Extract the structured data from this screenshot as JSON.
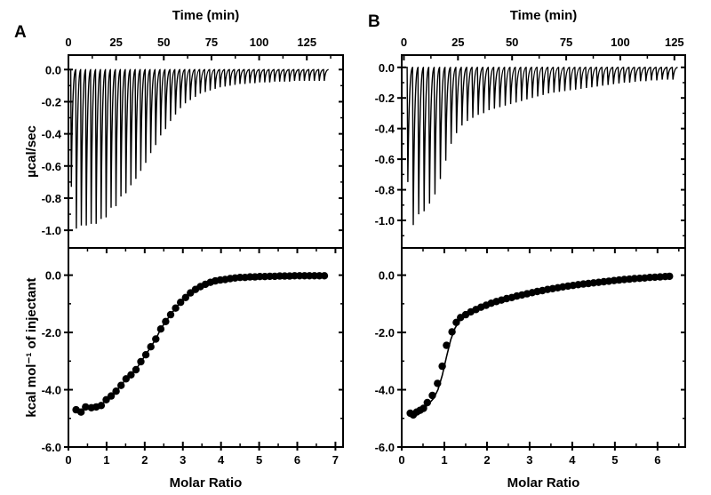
{
  "figure": {
    "panels": [
      "A",
      "B"
    ]
  },
  "chart_data": [
    {
      "panel": "A",
      "upper": {
        "type": "line",
        "title": "",
        "xlabel": "Time (min)",
        "ylabel": "µcal/sec",
        "xlim": [
          0,
          144
        ],
        "ylim": [
          -1.11,
          0.09
        ],
        "xticks": [
          0,
          25,
          50,
          75,
          100,
          125
        ],
        "xtick_labels": [
          "0",
          "25",
          "50",
          "75",
          "100",
          "125"
        ],
        "yticks": [
          0.0,
          -0.2,
          -0.4,
          -0.6,
          -0.8,
          -1.0
        ],
        "ytick_labels": [
          "0.0",
          "-0.2",
          "-0.4",
          "-0.6",
          "-0.8",
          "-1.0"
        ],
        "injection_interval_min": 2.6,
        "first_injection_min": 1.2,
        "peak_minima": [
          -0.73,
          -0.99,
          -0.97,
          -0.97,
          -0.96,
          -0.96,
          -0.93,
          -0.92,
          -0.86,
          -0.85,
          -0.79,
          -0.77,
          -0.72,
          -0.68,
          -0.63,
          -0.58,
          -0.52,
          -0.47,
          -0.41,
          -0.37,
          -0.32,
          -0.28,
          -0.24,
          -0.21,
          -0.19,
          -0.17,
          -0.15,
          -0.14,
          -0.13,
          -0.12,
          -0.11,
          -0.105,
          -0.1,
          -0.095,
          -0.09,
          -0.09,
          -0.085,
          -0.085,
          -0.08,
          -0.08,
          -0.08,
          -0.075,
          -0.075,
          -0.075,
          -0.075,
          -0.07,
          -0.07,
          -0.07,
          -0.07,
          -0.07,
          -0.07,
          -0.07
        ]
      },
      "lower": {
        "type": "scatter",
        "xlabel": "Molar Ratio",
        "ylabel": "kcal mol⁻¹ of injectant",
        "xlim": [
          0,
          7.2
        ],
        "ylim": [
          -6.0,
          0.95
        ],
        "xticks": [
          0,
          1,
          2,
          3,
          4,
          5,
          6,
          7
        ],
        "xtick_labels": [
          "0",
          "1",
          "2",
          "3",
          "4",
          "5",
          "6",
          "7"
        ],
        "yticks": [
          0.0,
          -2.0,
          -4.0,
          -6.0
        ],
        "ytick_labels": [
          "0.0",
          "-2.0",
          "-4.0",
          "-6.0"
        ],
        "points": {
          "x": [
            0.2,
            0.33,
            0.45,
            0.6,
            0.73,
            0.86,
            0.99,
            1.12,
            1.25,
            1.38,
            1.51,
            1.64,
            1.77,
            1.9,
            2.03,
            2.16,
            2.29,
            2.42,
            2.55,
            2.68,
            2.81,
            2.94,
            3.07,
            3.2,
            3.33,
            3.46,
            3.59,
            3.72,
            3.85,
            3.98,
            4.11,
            4.24,
            4.37,
            4.5,
            4.63,
            4.76,
            4.89,
            5.02,
            5.15,
            5.28,
            5.41,
            5.54,
            5.67,
            5.8,
            5.93,
            6.06,
            6.19,
            6.32,
            6.45,
            6.58,
            6.71
          ],
          "y": [
            -4.7,
            -4.78,
            -4.6,
            -4.63,
            -4.6,
            -4.55,
            -4.35,
            -4.22,
            -4.05,
            -3.85,
            -3.62,
            -3.48,
            -3.3,
            -3.02,
            -2.78,
            -2.5,
            -2.23,
            -1.88,
            -1.62,
            -1.38,
            -1.15,
            -0.95,
            -0.78,
            -0.62,
            -0.5,
            -0.4,
            -0.32,
            -0.25,
            -0.2,
            -0.17,
            -0.15,
            -0.12,
            -0.1,
            -0.08,
            -0.08,
            -0.06,
            -0.06,
            -0.05,
            -0.05,
            -0.04,
            -0.04,
            -0.03,
            -0.03,
            -0.03,
            -0.02,
            -0.02,
            -0.02,
            -0.02,
            -0.02,
            -0.02,
            -0.02
          ]
        },
        "fit": true
      }
    },
    {
      "panel": "B",
      "upper": {
        "type": "line",
        "title": "",
        "xlabel": "Time (min)",
        "ylabel": "",
        "xlim": [
          -1,
          130
        ],
        "ylim": [
          -1.18,
          0.08
        ],
        "xticks": [
          0,
          25,
          50,
          75,
          100,
          125
        ],
        "xtick_labels": [
          "0",
          "25",
          "50",
          "75",
          "100",
          "125"
        ],
        "yticks": [
          0.0,
          -0.2,
          -0.4,
          -0.6,
          -0.8,
          -1.0
        ],
        "ytick_labels": [
          "0.0",
          "-0.2",
          "-0.4",
          "-0.6",
          "-0.8",
          "-1.0"
        ],
        "injection_interval_min": 2.5,
        "first_injection_min": 1.5,
        "peak_minima": [
          -0.75,
          -1.03,
          -0.96,
          -0.94,
          -0.89,
          -0.83,
          -0.73,
          -0.61,
          -0.5,
          -0.43,
          -0.38,
          -0.35,
          -0.33,
          -0.31,
          -0.3,
          -0.28,
          -0.27,
          -0.26,
          -0.25,
          -0.24,
          -0.23,
          -0.22,
          -0.21,
          -0.2,
          -0.19,
          -0.18,
          -0.17,
          -0.165,
          -0.16,
          -0.155,
          -0.15,
          -0.145,
          -0.14,
          -0.135,
          -0.13,
          -0.125,
          -0.12,
          -0.115,
          -0.11,
          -0.105,
          -0.1,
          -0.1,
          -0.095,
          -0.09,
          -0.09,
          -0.085,
          -0.085,
          -0.08,
          -0.08,
          -0.08
        ]
      },
      "lower": {
        "type": "scatter",
        "xlabel": "Molar Ratio",
        "ylabel": "",
        "xlim": [
          0,
          6.65
        ],
        "ylim": [
          -6.0,
          0.95
        ],
        "xticks": [
          0,
          1,
          2,
          3,
          4,
          5,
          6
        ],
        "xtick_labels": [
          "0",
          "1",
          "2",
          "3",
          "4",
          "5",
          "6"
        ],
        "yticks": [
          0.0,
          -2.0,
          -4.0,
          -6.0
        ],
        "ytick_labels": [
          "0.0",
          "-2.0",
          "-4.0",
          "-6.0"
        ],
        "points": {
          "x": [
            0.2,
            0.27,
            0.35,
            0.43,
            0.51,
            0.6,
            0.72,
            0.84,
            0.95,
            1.05,
            1.18,
            1.28,
            1.38,
            1.5,
            1.62,
            1.74,
            1.86,
            1.98,
            2.1,
            2.22,
            2.34,
            2.46,
            2.58,
            2.7,
            2.82,
            2.94,
            3.06,
            3.18,
            3.3,
            3.42,
            3.54,
            3.66,
            3.78,
            3.9,
            4.02,
            4.14,
            4.26,
            4.38,
            4.5,
            4.62,
            4.74,
            4.86,
            4.98,
            5.1,
            5.22,
            5.34,
            5.46,
            5.58,
            5.7,
            5.82,
            5.94,
            6.06,
            6.18,
            6.28
          ],
          "y": [
            -4.82,
            -4.88,
            -4.78,
            -4.72,
            -4.65,
            -4.45,
            -4.2,
            -3.78,
            -3.18,
            -2.45,
            -1.98,
            -1.65,
            -1.48,
            -1.38,
            -1.28,
            -1.2,
            -1.12,
            -1.05,
            -0.98,
            -0.92,
            -0.87,
            -0.82,
            -0.78,
            -0.73,
            -0.69,
            -0.65,
            -0.61,
            -0.57,
            -0.54,
            -0.5,
            -0.47,
            -0.44,
            -0.41,
            -0.38,
            -0.36,
            -0.33,
            -0.31,
            -0.29,
            -0.27,
            -0.25,
            -0.23,
            -0.21,
            -0.19,
            -0.17,
            -0.15,
            -0.14,
            -0.12,
            -0.11,
            -0.1,
            -0.08,
            -0.07,
            -0.06,
            -0.05,
            -0.04
          ]
        },
        "fit_points": {
          "x": [
            0.2,
            0.4,
            0.6,
            0.75,
            0.85,
            0.95,
            1.05,
            1.15,
            1.25,
            1.35,
            1.5,
            1.7,
            2.0,
            2.4,
            2.8,
            3.2,
            3.6,
            4.0,
            4.5,
            5.0,
            5.5,
            6.0,
            6.3
          ],
          "y": [
            -4.85,
            -4.75,
            -4.55,
            -4.3,
            -4.0,
            -3.5,
            -2.85,
            -2.25,
            -1.85,
            -1.6,
            -1.4,
            -1.22,
            -1.02,
            -0.85,
            -0.7,
            -0.58,
            -0.47,
            -0.37,
            -0.27,
            -0.19,
            -0.12,
            -0.07,
            -0.05
          ]
        }
      }
    }
  ]
}
